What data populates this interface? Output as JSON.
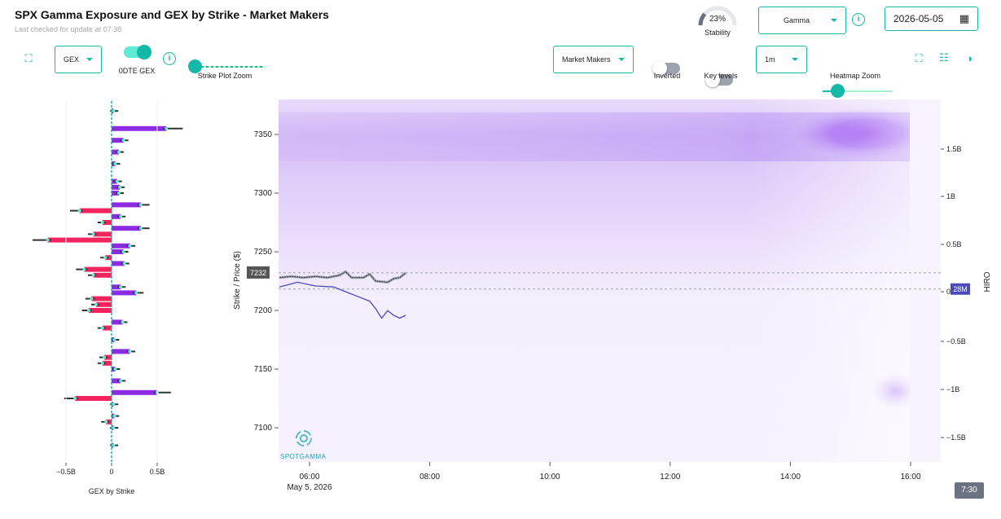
{
  "header": {
    "title": "SPX Gamma Exposure and GEX by Strike - Market Makers",
    "subtitle": "Last checked for update at 07:38",
    "stability_value": "23%",
    "stability_fraction": 0.23,
    "stability_label": "Stability",
    "metric_select": "Gamma",
    "date": "2026-05-05"
  },
  "toolbar": {
    "gex_select": "GEX",
    "odte_label": "0DTE GEX",
    "odte_on": true,
    "strike_zoom_label": "Strike Plot Zoom",
    "strike_zoom_value": 0,
    "participant_select": "Market Makers",
    "inverted_label": "Inverted",
    "inverted_on": false,
    "key_levels_label": "Key levels",
    "key_levels_on": false,
    "interval_select": "1m",
    "heatmap_zoom_label": "Heatmap Zoom",
    "heatmap_zoom_value": 0.2
  },
  "icons": {
    "expand_left": "expand-icon",
    "expand_right": "expand-icon",
    "settings": "sliders-icon",
    "contrast": "contrast-icon",
    "calendar": "calendar-icon"
  },
  "gex_chart": {
    "xlabel": "GEX by Strike",
    "ticks": [
      {
        "value": -0.5,
        "label": "−0.5B"
      },
      {
        "value": 0,
        "label": "0"
      },
      {
        "value": 0.5,
        "label": "0.5B"
      }
    ],
    "bars": [
      {
        "strike": 7370,
        "value": 0.02
      },
      {
        "strike": 7355,
        "value": 0.6
      },
      {
        "strike": 7345,
        "value": 0.13
      },
      {
        "strike": 7335,
        "value": 0.08
      },
      {
        "strike": 7325,
        "value": 0.04
      },
      {
        "strike": 7310,
        "value": 0.06
      },
      {
        "strike": 7305,
        "value": 0.09
      },
      {
        "strike": 7300,
        "value": 0.08
      },
      {
        "strike": 7290,
        "value": 0.32
      },
      {
        "strike": 7285,
        "value": -0.35
      },
      {
        "strike": 7280,
        "value": 0.1
      },
      {
        "strike": 7275,
        "value": -0.1
      },
      {
        "strike": 7270,
        "value": 0.32
      },
      {
        "strike": 7265,
        "value": -0.2
      },
      {
        "strike": 7260,
        "value": -0.7
      },
      {
        "strike": 7255,
        "value": 0.2
      },
      {
        "strike": 7250,
        "value": 0.13
      },
      {
        "strike": 7245,
        "value": -0.07
      },
      {
        "strike": 7240,
        "value": 0.14
      },
      {
        "strike": 7235,
        "value": -0.3
      },
      {
        "strike": 7230,
        "value": -0.2
      },
      {
        "strike": 7220,
        "value": 0.1
      },
      {
        "strike": 7215,
        "value": 0.27
      },
      {
        "strike": 7210,
        "value": -0.22
      },
      {
        "strike": 7205,
        "value": -0.17
      },
      {
        "strike": 7200,
        "value": -0.25
      },
      {
        "strike": 7190,
        "value": 0.12
      },
      {
        "strike": 7185,
        "value": -0.1
      },
      {
        "strike": 7175,
        "value": 0.03
      },
      {
        "strike": 7165,
        "value": 0.2
      },
      {
        "strike": 7160,
        "value": -0.08
      },
      {
        "strike": 7155,
        "value": -0.1
      },
      {
        "strike": 7150,
        "value": 0.04
      },
      {
        "strike": 7140,
        "value": 0.1
      },
      {
        "strike": 7130,
        "value": 0.5
      },
      {
        "strike": 7125,
        "value": -0.4
      },
      {
        "strike": 7120,
        "value": 0.02
      },
      {
        "strike": 7110,
        "value": 0.03
      },
      {
        "strike": 7105,
        "value": -0.06
      },
      {
        "strike": 7100,
        "value": 0.02
      },
      {
        "strike": 7085,
        "value": 0.02
      }
    ]
  },
  "heatmap": {
    "ylabel": "Strike / Price ($)",
    "y2label": "HIRO",
    "yticks": [
      "7350",
      "7300",
      "7250",
      "7200",
      "7150",
      "7100"
    ],
    "y2ticks": [
      "1.5B",
      "1B",
      "0.5B",
      "0",
      "−0.5B",
      "−1B",
      "−1.5B"
    ],
    "xticks": [
      "06:00",
      "08:00",
      "10:00",
      "12:00",
      "14:00",
      "16:00"
    ],
    "xdate": "May 5, 2026",
    "price_label": "7232",
    "hiro_label": "28M",
    "watermark": "SPOTGAMMA",
    "time_tooltip": "7:30",
    "price_series": [
      [
        5.5,
        7228
      ],
      [
        5.7,
        7229
      ],
      [
        5.9,
        7228
      ],
      [
        6.1,
        7229
      ],
      [
        6.3,
        7228
      ],
      [
        6.5,
        7230
      ],
      [
        6.6,
        7233
      ],
      [
        6.7,
        7228
      ],
      [
        6.9,
        7228
      ],
      [
        7.0,
        7231
      ],
      [
        7.1,
        7225
      ],
      [
        7.3,
        7224
      ],
      [
        7.4,
        7227
      ],
      [
        7.5,
        7228
      ],
      [
        7.6,
        7232
      ]
    ],
    "hiro_series": [
      [
        5.5,
        0.05
      ],
      [
        5.8,
        0.1
      ],
      [
        6.1,
        0.06
      ],
      [
        6.4,
        0.05
      ],
      [
        6.6,
        0.0
      ],
      [
        6.8,
        -0.05
      ],
      [
        7.0,
        -0.1
      ],
      [
        7.1,
        -0.18
      ],
      [
        7.2,
        -0.28
      ],
      [
        7.3,
        -0.2
      ],
      [
        7.4,
        -0.25
      ],
      [
        7.5,
        -0.28
      ],
      [
        7.6,
        -0.25
      ]
    ]
  }
}
